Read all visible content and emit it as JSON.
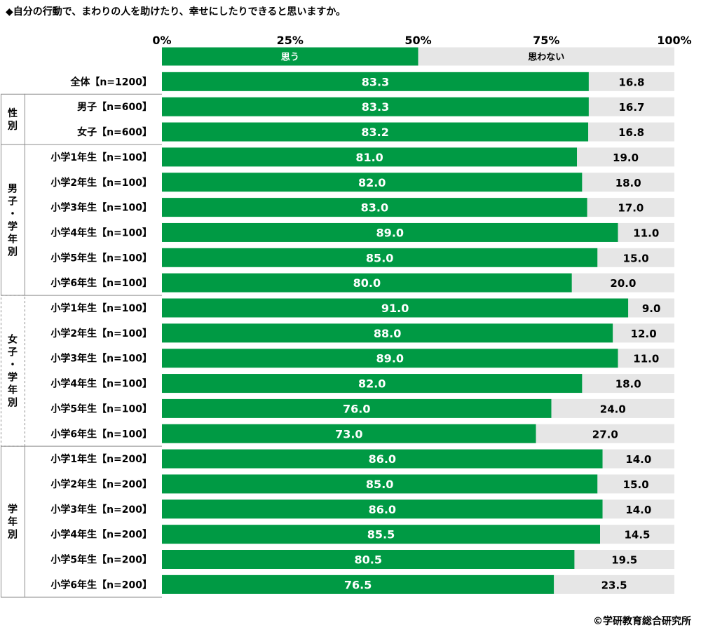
{
  "title": "◆自分の行動で、まわりの人を助けたり、幸せにしたりできると思いますか。",
  "credit": "©学研教育総合研究所",
  "colors": {
    "agree": "#009a44",
    "disagree": "#e6e6e6"
  },
  "chart_data": {
    "type": "bar",
    "orientation": "horizontal",
    "stacked": true,
    "xlim": [
      0,
      100
    ],
    "x_ticks": [
      "0%",
      "25%",
      "50%",
      "75%",
      "100%"
    ],
    "legend": {
      "placement": "top",
      "entries": [
        "思う",
        "思わない"
      ]
    },
    "series": [
      {
        "name": "思う",
        "values": [
          83.3,
          83.3,
          83.2,
          81.0,
          82.0,
          83.0,
          89.0,
          85.0,
          80.0,
          91.0,
          88.0,
          89.0,
          82.0,
          76.0,
          73.0,
          86.0,
          85.0,
          86.0,
          85.5,
          80.5,
          76.5
        ]
      },
      {
        "name": "思わない",
        "values": [
          16.8,
          16.7,
          16.8,
          19.0,
          18.0,
          17.0,
          11.0,
          15.0,
          20.0,
          9.0,
          12.0,
          11.0,
          18.0,
          24.0,
          27.0,
          14.0,
          15.0,
          14.0,
          14.5,
          19.5,
          23.5
        ]
      }
    ],
    "value_labels": {
      "agree": [
        "83.3",
        "83.3",
        "83.2",
        "81.0",
        "82.0",
        "83.0",
        "89.0",
        "85.0",
        "80.0",
        "91.0",
        "88.0",
        "89.0",
        "82.0",
        "76.0",
        "73.0",
        "86.0",
        "85.0",
        "86.0",
        "85.5",
        "80.5",
        "76.5"
      ],
      "disagree": [
        "16.8",
        "16.7",
        "16.8",
        "19.0",
        "18.0",
        "17.0",
        "11.0",
        "15.0",
        "20.0",
        "9.0",
        "12.0",
        "11.0",
        "18.0",
        "24.0",
        "27.0",
        "14.0",
        "15.0",
        "14.0",
        "14.5",
        "19.5",
        "23.5"
      ]
    },
    "categories": [
      "全体【n=1200】",
      "男子【n=600】",
      "女子【n=600】",
      "小学1年生【n=100】",
      "小学2年生【n=100】",
      "小学3年生【n=100】",
      "小学4年生【n=100】",
      "小学5年生【n=100】",
      "小学6年生【n=100】",
      "小学1年生【n=100】",
      "小学2年生【n=100】",
      "小学3年生【n=100】",
      "小学4年生【n=100】",
      "小学5年生【n=100】",
      "小学6年生【n=100】",
      "小学1年生【n=200】",
      "小学2年生【n=200】",
      "小学3年生【n=200】",
      "小学4年生【n=200】",
      "小学5年生【n=200】",
      "小学6年生【n=200】"
    ],
    "groups": [
      {
        "label": "性別",
        "start": 1,
        "count": 2
      },
      {
        "label": "男子・学年別",
        "start": 3,
        "count": 6
      },
      {
        "label": "女子・学年別",
        "start": 9,
        "count": 6
      },
      {
        "label": "学年別",
        "start": 15,
        "count": 6
      }
    ]
  }
}
